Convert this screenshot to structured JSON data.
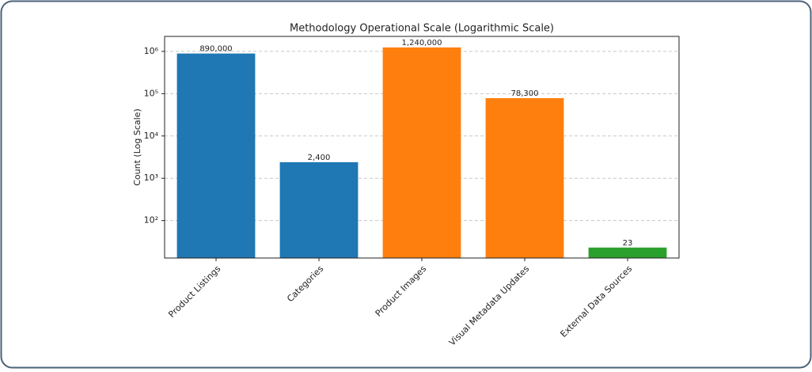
{
  "chart_data": {
    "type": "bar",
    "title": "Methodology Operational Scale (Logarithmic Scale)",
    "y_label": "Count (Log Scale)",
    "categories": [
      "Product Listings",
      "Categories",
      "Product Images",
      "Visual Metadata Updates",
      "External Data Sources"
    ],
    "values": [
      890000,
      2400,
      1240000,
      78300,
      23
    ],
    "value_labels": [
      "890,000",
      "2,400",
      "1,240,000",
      "78,300",
      "23"
    ],
    "colors": [
      "#1f77b4",
      "#1f77b4",
      "#ff7f0e",
      "#ff7f0e",
      "#2ca02c"
    ],
    "log_scale": true,
    "ylim": [
      13,
      2260000
    ],
    "yticks": [
      {
        "value": 100,
        "label": "10²"
      },
      {
        "value": 1000,
        "label": "10³"
      },
      {
        "value": 10000,
        "label": "10⁴"
      },
      {
        "value": 100000,
        "label": "10⁵"
      },
      {
        "value": 1000000,
        "label": "10⁶"
      }
    ],
    "grid": true
  }
}
